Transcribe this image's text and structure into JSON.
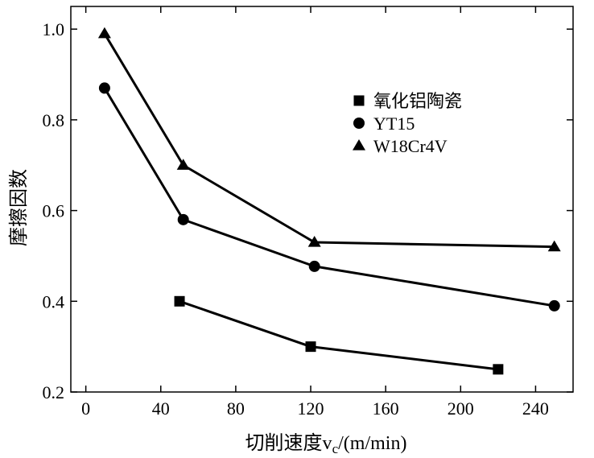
{
  "chart_data": {
    "type": "line",
    "title": "",
    "xlabel": "切削速度v",
    "xlabel_sub": "c",
    "xlabel_unit": "/(m/min)",
    "ylabel": "摩擦因数",
    "xlim": [
      -8,
      260
    ],
    "ylim": [
      0.2,
      1.05
    ],
    "xticks": [
      0,
      40,
      80,
      120,
      160,
      200,
      240
    ],
    "yticks": [
      0.2,
      0.4,
      0.6,
      0.8,
      1.0
    ],
    "xtick_labels": [
      "0",
      "40",
      "80",
      "120",
      "160",
      "200",
      "240"
    ],
    "ytick_labels": [
      "0.2",
      "0.4",
      "0.6",
      "0.8",
      "1.0"
    ],
    "grid": false,
    "legend_position": "top-right",
    "series": [
      {
        "name": "氧化铝陶瓷",
        "marker": "square",
        "x": [
          50,
          120,
          220
        ],
        "y": [
          0.4,
          0.3,
          0.25
        ]
      },
      {
        "name": "YT15",
        "marker": "circle",
        "x": [
          10,
          52,
          122,
          250
        ],
        "y": [
          0.87,
          0.58,
          0.477,
          0.39
        ]
      },
      {
        "name": "W18Cr4V",
        "marker": "triangle",
        "x": [
          10,
          52,
          122,
          250
        ],
        "y": [
          0.99,
          0.7,
          0.53,
          0.52
        ]
      }
    ]
  }
}
